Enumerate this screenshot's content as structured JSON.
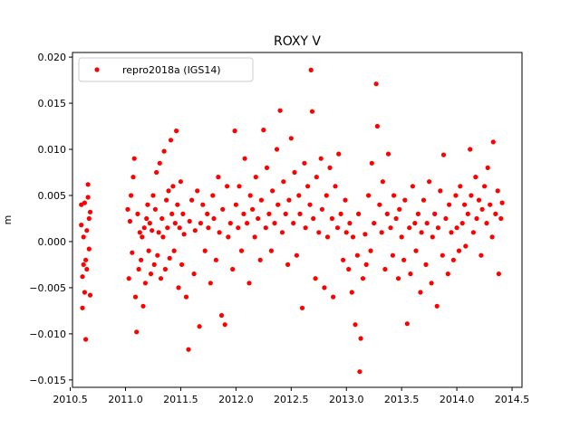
{
  "chart_data": {
    "type": "scatter",
    "title": "ROXY V",
    "xlabel": "",
    "ylabel": "m",
    "xlim": [
      2010.52,
      2014.59
    ],
    "ylim": [
      -0.0158,
      0.0205
    ],
    "x_ticks": [
      2010.5,
      2011.0,
      2011.5,
      2012.0,
      2012.5,
      2013.0,
      2013.5,
      2014.0,
      2014.5
    ],
    "x_tick_labels": [
      "2010.5",
      "2011.0",
      "2011.5",
      "2012.0",
      "2012.5",
      "2013.0",
      "2013.5",
      "2014.0",
      "2014.5"
    ],
    "y_ticks": [
      -0.015,
      -0.01,
      -0.005,
      0.0,
      0.005,
      0.01,
      0.015,
      0.02
    ],
    "y_tick_labels": [
      "−0.015",
      "−0.010",
      "−0.005",
      "0.000",
      "0.005",
      "0.010",
      "0.015",
      "0.020"
    ],
    "grid": false,
    "legend_position": "upper-left",
    "series": [
      {
        "name": "repro2018a (IGS14)",
        "color": "#ff0000",
        "marker": "circle",
        "points": [
          [
            2010.6,
            0.004
          ],
          [
            2010.6,
            0.0018
          ],
          [
            2010.61,
            -0.0038
          ],
          [
            2010.61,
            -0.0072
          ],
          [
            2010.62,
            0.0005
          ],
          [
            2010.62,
            -0.0025
          ],
          [
            2010.63,
            0.0042
          ],
          [
            2010.63,
            -0.0055
          ],
          [
            2010.64,
            -0.002
          ],
          [
            2010.64,
            -0.0106
          ],
          [
            2010.65,
            0.0012
          ],
          [
            2010.65,
            -0.003
          ],
          [
            2010.66,
            0.0062
          ],
          [
            2010.66,
            0.0048
          ],
          [
            2010.67,
            0.0025
          ],
          [
            2010.67,
            -0.0008
          ],
          [
            2010.68,
            0.0032
          ],
          [
            2010.68,
            -0.0058
          ],
          [
            2011.02,
            0.0035
          ],
          [
            2011.03,
            -0.004
          ],
          [
            2011.04,
            0.0022
          ],
          [
            2011.05,
            0.005
          ],
          [
            2011.06,
            -0.0012
          ],
          [
            2011.07,
            0.007
          ],
          [
            2011.08,
            0.009
          ],
          [
            2011.09,
            -0.006
          ],
          [
            2011.1,
            -0.0098
          ],
          [
            2011.11,
            0.003
          ],
          [
            2011.12,
            -0.003
          ],
          [
            2011.13,
            0.001
          ],
          [
            2011.14,
            -0.002
          ],
          [
            2011.15,
            0.0005
          ],
          [
            2011.16,
            -0.007
          ],
          [
            2011.17,
            0.0015
          ],
          [
            2011.18,
            -0.0045
          ],
          [
            2011.19,
            0.0025
          ],
          [
            2011.2,
            0.004
          ],
          [
            2011.21,
            -0.001
          ],
          [
            2011.22,
            0.002
          ],
          [
            2011.23,
            -0.0035
          ],
          [
            2011.24,
            0.0012
          ],
          [
            2011.25,
            0.005
          ],
          [
            2011.26,
            -0.0025
          ],
          [
            2011.27,
            0.0035
          ],
          [
            2011.28,
            0.0075
          ],
          [
            2011.29,
            -0.0015
          ],
          [
            2011.3,
            0.001
          ],
          [
            2011.31,
            0.0085
          ],
          [
            2011.32,
            -0.004
          ],
          [
            2011.33,
            0.0025
          ],
          [
            2011.34,
            0.0005
          ],
          [
            2011.35,
            0.0098
          ],
          [
            2011.36,
            -0.003
          ],
          [
            2011.37,
            0.0045
          ],
          [
            2011.38,
            0.0015
          ],
          [
            2011.39,
            0.0055
          ],
          [
            2011.4,
            -0.0018
          ],
          [
            2011.41,
            0.011
          ],
          [
            2011.42,
            0.003
          ],
          [
            2011.43,
            0.006
          ],
          [
            2011.44,
            -0.001
          ],
          [
            2011.45,
            0.002
          ],
          [
            2011.46,
            0.012
          ],
          [
            2011.47,
            0.004
          ],
          [
            2011.48,
            -0.005
          ],
          [
            2011.49,
            0.0015
          ],
          [
            2011.5,
            0.0065
          ],
          [
            2011.51,
            -0.0025
          ],
          [
            2011.52,
            0.003
          ],
          [
            2011.53,
            0.0008
          ],
          [
            2011.55,
            -0.006
          ],
          [
            2011.57,
            -0.0117
          ],
          [
            2011.58,
            0.0022
          ],
          [
            2011.6,
            0.0045
          ],
          [
            2011.62,
            -0.0035
          ],
          [
            2011.63,
            0.0012
          ],
          [
            2011.65,
            0.0055
          ],
          [
            2011.67,
            -0.0092
          ],
          [
            2011.68,
            0.002
          ],
          [
            2011.7,
            0.004
          ],
          [
            2011.72,
            -0.001
          ],
          [
            2011.74,
            0.003
          ],
          [
            2011.75,
            0.0015
          ],
          [
            2011.77,
            -0.0045
          ],
          [
            2011.79,
            0.005
          ],
          [
            2011.8,
            0.0025
          ],
          [
            2011.82,
            -0.002
          ],
          [
            2011.84,
            0.007
          ],
          [
            2011.85,
            0.001
          ],
          [
            2011.87,
            -0.008
          ],
          [
            2011.88,
            0.0035
          ],
          [
            2011.9,
            -0.009
          ],
          [
            2011.92,
            0.006
          ],
          [
            2011.93,
            0.0005
          ],
          [
            2011.95,
            0.002
          ],
          [
            2011.97,
            -0.003
          ],
          [
            2011.99,
            0.012
          ],
          [
            2012.0,
            0.004
          ],
          [
            2012.02,
            0.0015
          ],
          [
            2012.03,
            0.006
          ],
          [
            2012.05,
            -0.001
          ],
          [
            2012.07,
            0.003
          ],
          [
            2012.08,
            0.009
          ],
          [
            2012.1,
            0.002
          ],
          [
            2012.12,
            -0.0045
          ],
          [
            2012.13,
            0.005
          ],
          [
            2012.15,
            0.0035
          ],
          [
            2012.17,
            0.0005
          ],
          [
            2012.18,
            0.007
          ],
          [
            2012.2,
            0.0025
          ],
          [
            2012.22,
            -0.002
          ],
          [
            2012.23,
            0.0045
          ],
          [
            2012.25,
            0.0121
          ],
          [
            2012.27,
            0.0015
          ],
          [
            2012.28,
            0.008
          ],
          [
            2012.3,
            0.003
          ],
          [
            2012.32,
            -0.001
          ],
          [
            2012.33,
            0.0055
          ],
          [
            2012.35,
            0.002
          ],
          [
            2012.37,
            0.01
          ],
          [
            2012.38,
            0.004
          ],
          [
            2012.4,
            0.0142
          ],
          [
            2012.42,
            0.001
          ],
          [
            2012.43,
            0.0065
          ],
          [
            2012.45,
            0.003
          ],
          [
            2012.47,
            -0.0025
          ],
          [
            2012.48,
            0.0045
          ],
          [
            2012.5,
            0.0112
          ],
          [
            2012.52,
            0.002
          ],
          [
            2012.53,
            0.0075
          ],
          [
            2012.55,
            -0.0015
          ],
          [
            2012.57,
            0.005
          ],
          [
            2012.58,
            0.003
          ],
          [
            2012.6,
            -0.0072
          ],
          [
            2012.62,
            0.0085
          ],
          [
            2012.63,
            0.0015
          ],
          [
            2012.65,
            0.006
          ],
          [
            2012.67,
            0.004
          ],
          [
            2012.68,
            0.0186
          ],
          [
            2012.69,
            0.0141
          ],
          [
            2012.7,
            0.0025
          ],
          [
            2012.72,
            -0.004
          ],
          [
            2012.73,
            0.007
          ],
          [
            2012.75,
            0.001
          ],
          [
            2012.77,
            0.009
          ],
          [
            2012.78,
            0.0035
          ],
          [
            2012.8,
            -0.005
          ],
          [
            2012.82,
            0.005
          ],
          [
            2012.83,
            0.0005
          ],
          [
            2012.85,
            0.008
          ],
          [
            2012.87,
            0.0025
          ],
          [
            2012.88,
            -0.006
          ],
          [
            2012.9,
            0.006
          ],
          [
            2012.92,
            0.0015
          ],
          [
            2012.93,
            0.0095
          ],
          [
            2012.95,
            0.003
          ],
          [
            2012.97,
            -0.002
          ],
          [
            2012.99,
            0.0045
          ],
          [
            2013.0,
            0.001
          ],
          [
            2013.02,
            -0.003
          ],
          [
            2013.03,
            0.002
          ],
          [
            2013.05,
            -0.0055
          ],
          [
            2013.06,
            0.0005
          ],
          [
            2013.08,
            -0.009
          ],
          [
            2013.1,
            -0.0015
          ],
          [
            2013.11,
            0.003
          ],
          [
            2013.12,
            -0.0141
          ],
          [
            2013.13,
            -0.0105
          ],
          [
            2013.15,
            -0.004
          ],
          [
            2013.17,
            0.0008
          ],
          [
            2013.18,
            -0.0025
          ],
          [
            2013.2,
            0.005
          ],
          [
            2013.22,
            -0.001
          ],
          [
            2013.23,
            0.0085
          ],
          [
            2013.25,
            0.002
          ],
          [
            2013.27,
            0.0171
          ],
          [
            2013.28,
            0.0125
          ],
          [
            2013.3,
            0.004
          ],
          [
            2013.32,
            0.001
          ],
          [
            2013.33,
            0.0065
          ],
          [
            2013.35,
            -0.003
          ],
          [
            2013.37,
            0.003
          ],
          [
            2013.38,
            0.0095
          ],
          [
            2013.4,
            0.0015
          ],
          [
            2013.42,
            -0.0015
          ],
          [
            2013.43,
            0.005
          ],
          [
            2013.45,
            0.0025
          ],
          [
            2013.47,
            -0.004
          ],
          [
            2013.48,
            0.0035
          ],
          [
            2013.5,
            0.0005
          ],
          [
            2013.52,
            -0.002
          ],
          [
            2013.53,
            0.0045
          ],
          [
            2013.55,
            -0.0089
          ],
          [
            2013.57,
            0.0015
          ],
          [
            2013.58,
            -0.0035
          ],
          [
            2013.6,
            0.006
          ],
          [
            2013.62,
            0.002
          ],
          [
            2013.63,
            -0.001
          ],
          [
            2013.65,
            0.003
          ],
          [
            2013.67,
            -0.0055
          ],
          [
            2013.68,
            0.001
          ],
          [
            2013.7,
            0.0045
          ],
          [
            2013.72,
            -0.0025
          ],
          [
            2013.73,
            0.002
          ],
          [
            2013.75,
            0.0065
          ],
          [
            2013.77,
            -0.0045
          ],
          [
            2013.78,
            0.0005
          ],
          [
            2013.8,
            0.003
          ],
          [
            2013.82,
            -0.007
          ],
          [
            2013.83,
            0.0015
          ],
          [
            2013.85,
            0.0055
          ],
          [
            2013.87,
            -0.0015
          ],
          [
            2013.88,
            0.0094
          ],
          [
            2013.9,
            0.0025
          ],
          [
            2013.92,
            -0.0035
          ],
          [
            2013.93,
            0.004
          ],
          [
            2013.95,
            0.001
          ],
          [
            2013.97,
            -0.002
          ],
          [
            2013.99,
            0.005
          ],
          [
            2014.0,
            0.0015
          ],
          [
            2014.02,
            -0.001
          ],
          [
            2014.03,
            0.006
          ],
          [
            2014.05,
            0.002
          ],
          [
            2014.07,
            0.004
          ],
          [
            2014.08,
            -0.0005
          ],
          [
            2014.1,
            0.003
          ],
          [
            2014.12,
            0.01
          ],
          [
            2014.13,
            0.005
          ],
          [
            2014.15,
            0.001
          ],
          [
            2014.17,
            0.007
          ],
          [
            2014.18,
            0.0025
          ],
          [
            2014.2,
            0.0045
          ],
          [
            2014.22,
            -0.0015
          ],
          [
            2014.23,
            0.0035
          ],
          [
            2014.25,
            0.006
          ],
          [
            2014.27,
            0.002
          ],
          [
            2014.28,
            0.008
          ],
          [
            2014.3,
            0.004
          ],
          [
            2014.32,
            0.0005
          ],
          [
            2014.33,
            0.0108
          ],
          [
            2014.35,
            0.003
          ],
          [
            2014.37,
            0.0055
          ],
          [
            2014.38,
            -0.0035
          ],
          [
            2014.4,
            0.0025
          ],
          [
            2014.41,
            0.0042
          ]
        ]
      }
    ]
  }
}
